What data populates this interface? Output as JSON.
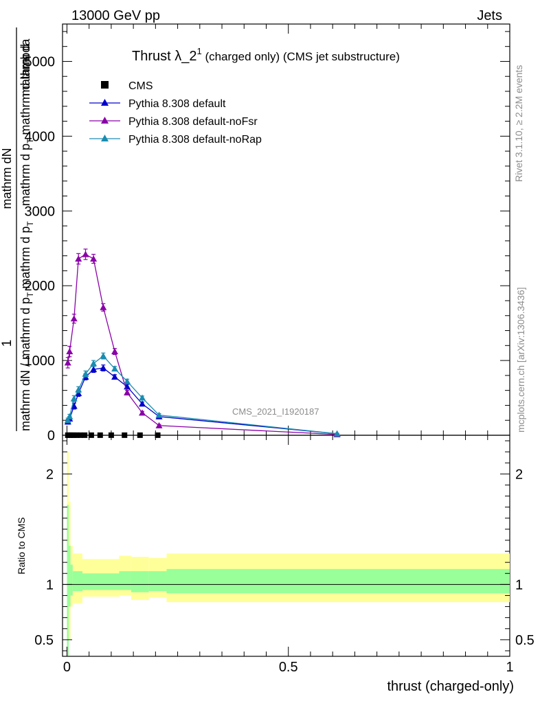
{
  "header": {
    "left": "13000 GeV pp",
    "right": "Jets"
  },
  "side_labels": {
    "rivet": "Rivet 3.1.10, ≥ 2.2M events",
    "mcplots": "mcplots.cern.ch [arXiv:1306.3436]"
  },
  "chart_data": [
    {
      "type": "line",
      "title_main": "Thrust λ_2",
      "title_sup": "1",
      "title_tail": " (charged only) (CMS jet substructure)",
      "watermark": "CMS_2021_I1920187",
      "ylabel_parts": [
        "1",
        "mathrm dN / mathrm d p",
        "T",
        "mathrm d p",
        "T",
        "mathrm dN",
        "mathrm d lambda",
        "mathrm d",
        "N"
      ],
      "ylim": [
        0,
        5500
      ],
      "xlim": [
        -0.01,
        1.0
      ],
      "yticks": [
        0,
        1000,
        2000,
        3000,
        4000,
        5000
      ],
      "ytick_labels": [
        "0",
        "1000",
        "2000",
        "3000",
        "4000",
        "5000"
      ],
      "legend_position": "top-left",
      "cms_markers_x": [
        0.002,
        0.006,
        0.01,
        0.016,
        0.022,
        0.03,
        0.04,
        0.055,
        0.075,
        0.1,
        0.13,
        0.165,
        0.205
      ],
      "series": [
        {
          "name": "CMS",
          "color": "#000000",
          "marker": "square",
          "x": [
            0.002,
            0.006,
            0.01,
            0.016,
            0.022,
            0.03,
            0.04,
            0.055,
            0.075,
            0.1,
            0.13,
            0.165,
            0.205
          ],
          "y": [
            1,
            1,
            1,
            1,
            1,
            1,
            1,
            1,
            1,
            1,
            1,
            1,
            1
          ]
        },
        {
          "name": "Pythia 8.308 default",
          "color": "#0000cc",
          "marker": "triangle",
          "x": [
            0.002,
            0.006,
            0.016,
            0.026,
            0.042,
            0.06,
            0.082,
            0.108,
            0.136,
            0.17,
            0.208,
            0.61
          ],
          "y": [
            180,
            220,
            390,
            560,
            780,
            880,
            900,
            780,
            650,
            420,
            250,
            20
          ],
          "err": [
            30,
            30,
            40,
            40,
            40,
            40,
            40,
            30,
            30,
            25,
            20,
            5
          ]
        },
        {
          "name": "Pythia 8.308 default-noFsr",
          "color": "#8a00a8",
          "marker": "triangle",
          "x": [
            0.002,
            0.006,
            0.016,
            0.026,
            0.042,
            0.06,
            0.082,
            0.108,
            0.136,
            0.17,
            0.208,
            0.61
          ],
          "y": [
            970,
            1120,
            1560,
            2360,
            2420,
            2360,
            1710,
            1120,
            570,
            300,
            130,
            10
          ],
          "err": [
            70,
            70,
            60,
            70,
            70,
            60,
            50,
            40,
            30,
            20,
            15,
            5
          ]
        },
        {
          "name": "Pythia 8.308 default-noRap",
          "color": "#1a8cb0",
          "marker": "triangle",
          "x": [
            0.002,
            0.006,
            0.016,
            0.026,
            0.042,
            0.06,
            0.082,
            0.108,
            0.136,
            0.17,
            0.208,
            0.61
          ],
          "y": [
            200,
            250,
            490,
            610,
            820,
            960,
            1060,
            890,
            720,
            500,
            270,
            20
          ],
          "err": [
            30,
            30,
            40,
            40,
            40,
            40,
            40,
            30,
            30,
            25,
            20,
            5
          ]
        }
      ]
    },
    {
      "type": "area",
      "ylabel": "Ratio to CMS",
      "xlabel": "thrust (charged-only)",
      "xlim": [
        -0.01,
        1.0
      ],
      "ylim": [
        0.35,
        2.35
      ],
      "xticks": [
        0,
        0.5,
        1
      ],
      "xtick_labels": [
        "0",
        "0.5",
        "1"
      ],
      "yticks": [
        0.5,
        1,
        2
      ],
      "ytick_labels": [
        "0.5",
        "1",
        "2"
      ],
      "reference": 1,
      "bands": {
        "edges": [
          0,
          0.004,
          0.008,
          0.013,
          0.035,
          0.118,
          0.145,
          0.185,
          0.225,
          1.0
        ],
        "yellow_lo": [
          0.3,
          0.5,
          0.8,
          0.83,
          0.89,
          0.9,
          0.86,
          0.88,
          0.84
        ],
        "yellow_hi": [
          2.2,
          1.75,
          1.35,
          1.28,
          1.23,
          1.26,
          1.25,
          1.24,
          1.28
        ],
        "green_lo": [
          0.3,
          0.8,
          0.9,
          0.94,
          0.95,
          0.95,
          0.93,
          0.94,
          0.92
        ],
        "green_hi": [
          1.72,
          1.35,
          1.18,
          1.12,
          1.1,
          1.12,
          1.12,
          1.12,
          1.14
        ]
      },
      "colors": {
        "yellow": "#ffff99",
        "green": "#99ff99"
      }
    }
  ]
}
